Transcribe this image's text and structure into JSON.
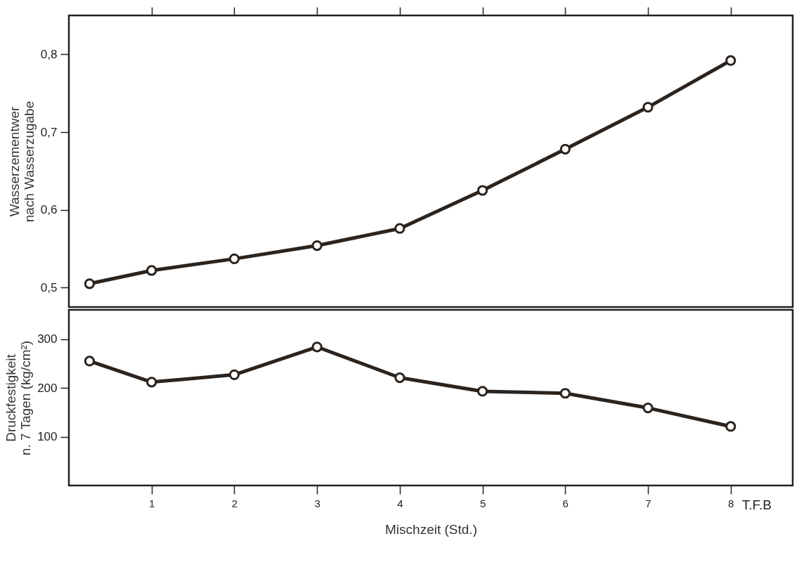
{
  "chart_data": [
    {
      "type": "line",
      "ylabel": "Wasserzementwer\nnach Wasserzugabe",
      "x": [
        0.25,
        1,
        2,
        3,
        4,
        5,
        6,
        7,
        8
      ],
      "series": [
        {
          "color": "#2b231e",
          "values": [
            0.505,
            0.522,
            0.537,
            0.554,
            0.576,
            0.625,
            0.678,
            0.732,
            0.792
          ]
        }
      ],
      "xlim": [
        0,
        8.75
      ],
      "xticks": [
        {
          "value": 1,
          "label": null
        },
        {
          "value": 2,
          "label": null
        },
        {
          "value": 3,
          "label": null
        },
        {
          "value": 4,
          "label": null
        },
        {
          "value": 5,
          "label": null
        },
        {
          "value": 6,
          "label": null
        },
        {
          "value": 7,
          "label": null
        },
        {
          "value": 8,
          "label": null
        }
      ],
      "ylim": [
        0.475,
        0.85
      ],
      "yticks": [
        {
          "value": 0.5,
          "label": "0,5"
        },
        {
          "value": 0.6,
          "label": "0,6"
        },
        {
          "value": 0.7,
          "label": "0,7"
        },
        {
          "value": 0.8,
          "label": "0,8"
        }
      ],
      "tick_labels": "y",
      "marker": "circle"
    },
    {
      "type": "line",
      "xlabel": "Mischzeit (Std.)",
      "ylabel": "Druckfestigkeit\nn. 7 Tagen (kg/cm²)",
      "x": [
        0.25,
        1,
        2,
        3,
        4,
        5,
        6,
        7,
        8
      ],
      "series": [
        {
          "color": "#2b231e",
          "values": [
            255,
            212,
            227,
            284,
            221,
            193,
            189,
            159,
            121
          ]
        }
      ],
      "xlim": [
        0,
        8.75
      ],
      "xticks": [
        1,
        2,
        3,
        4,
        5,
        6,
        7,
        8
      ],
      "ylim": [
        0,
        360
      ],
      "yticks": [
        100,
        200,
        300
      ],
      "annotations": [
        "T.F.B"
      ],
      "marker": "circle"
    }
  ]
}
